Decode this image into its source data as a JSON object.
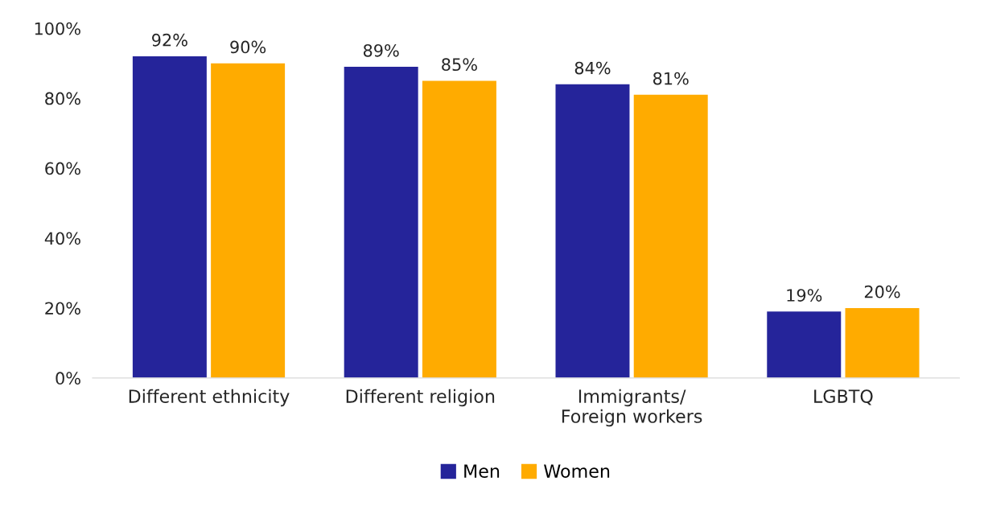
{
  "chart_data": {
    "type": "bar",
    "categories": [
      "Different ethnicity",
      "Different religion",
      "Immigrants/\nForeign workers",
      "LGBTQ"
    ],
    "series": [
      {
        "name": "Men",
        "color": "#25249a",
        "values": [
          92,
          89,
          84,
          19
        ],
        "value_labels": [
          "92%",
          "89%",
          "84%",
          "19%"
        ]
      },
      {
        "name": "Women",
        "color": "#ffab00",
        "values": [
          90,
          85,
          81,
          20
        ],
        "value_labels": [
          "90%",
          "85%",
          "81%",
          "20%"
        ]
      }
    ],
    "ylim": [
      0,
      100
    ],
    "yticks": [
      {
        "value": 0,
        "label": "0%"
      },
      {
        "value": 20,
        "label": "20%"
      },
      {
        "value": 40,
        "label": "40%"
      },
      {
        "value": 60,
        "label": "60%"
      },
      {
        "value": 80,
        "label": "80%"
      },
      {
        "value": 100,
        "label": "100%"
      }
    ],
    "grid": false,
    "legend": "bottom"
  }
}
